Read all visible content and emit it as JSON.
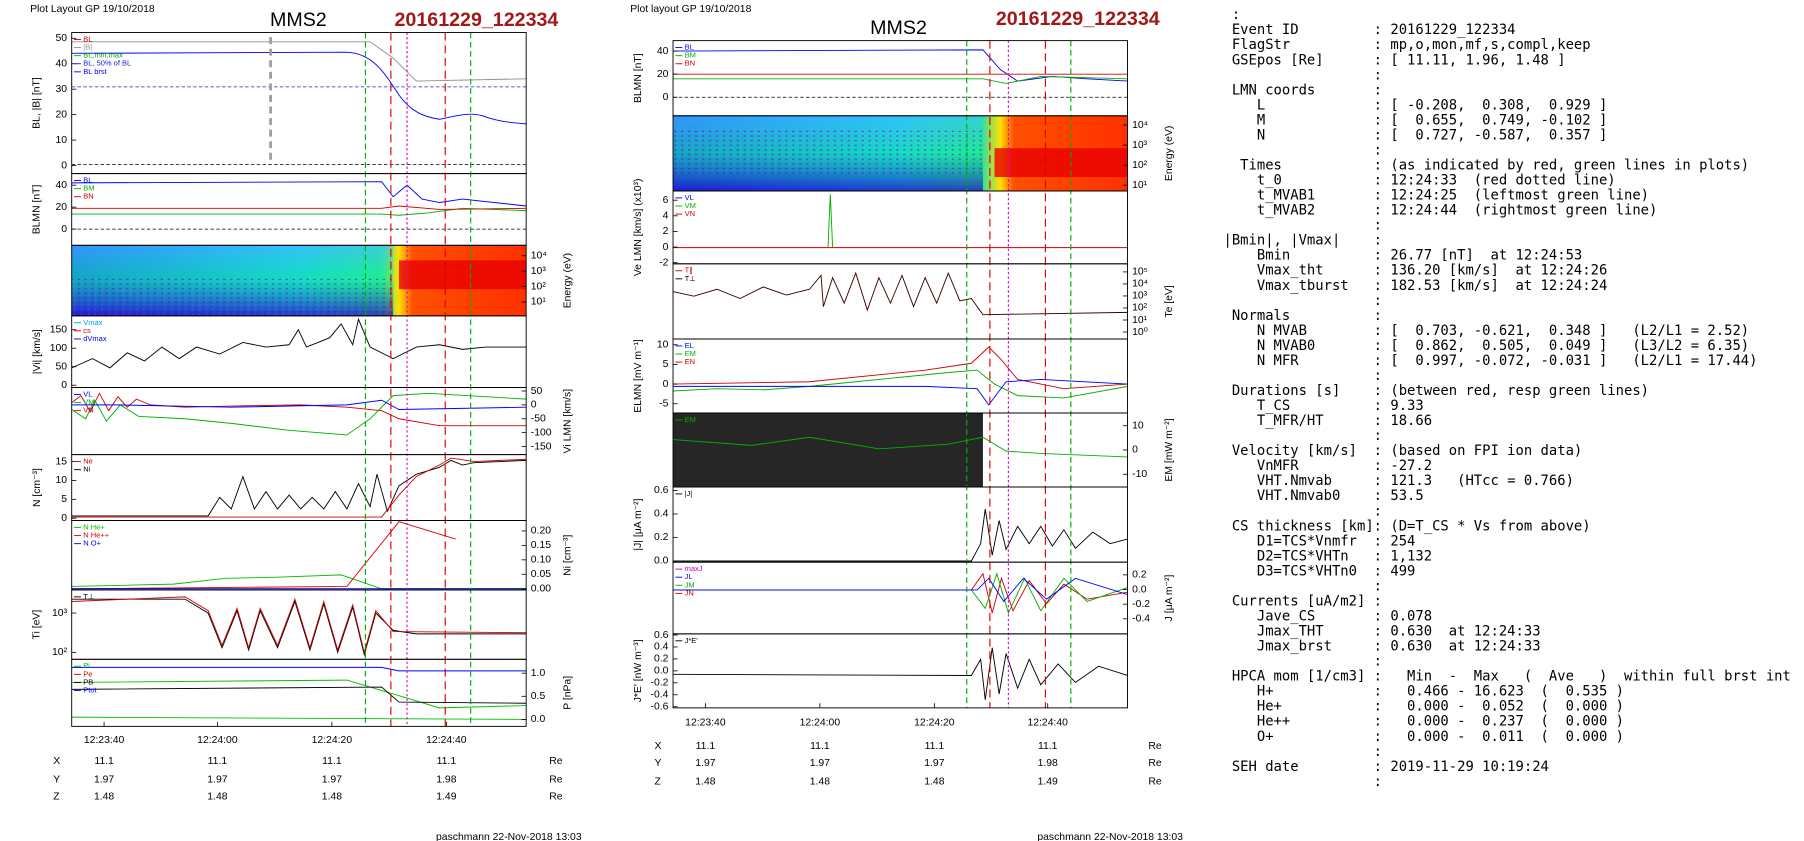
{
  "plots": [
    {
      "header": "Plot Layout GP 19/10/2018",
      "spacecraft": "MMS2",
      "event": "20161229_122334",
      "panels": [
        {
          "label": "BL, |B| [nT]",
          "ticks": [
            "50",
            "40",
            "30",
            "20",
            "10",
            "0"
          ],
          "legend": [
            {
              "text": "BL",
              "color": "#d00000"
            },
            {
              "text": "|B|",
              "color": "#909090"
            },
            {
              "text": "BL,min,max",
              "color": "#00b000"
            },
            {
              "text": "BL, 50% of BL",
              "color": "#2020d0"
            },
            {
              "text": "BL brst",
              "color": "#0000ff"
            }
          ]
        },
        {
          "label": "BLMN [nT]",
          "ticks": [
            "40",
            "20",
            "0"
          ],
          "legend": [
            {
              "text": "BL",
              "color": "#0000ff"
            },
            {
              "text": "BM",
              "color": "#00b000"
            },
            {
              "text": "BN",
              "color": "#d00000"
            }
          ]
        },
        {
          "label": "Energy (eV)",
          "ticks": [
            "10⁴",
            "10³",
            "10²",
            "10¹"
          ],
          "legend": []
        },
        {
          "label": "|Vi| [km/s]",
          "ticks": [
            "150",
            "100",
            "50",
            "0"
          ],
          "legend": [
            {
              "text": "Vmax",
              "color": "#00a0ff"
            },
            {
              "text": "cs",
              "color": "#d00000"
            },
            {
              "text": "dVmax",
              "color": "#0000ff"
            }
          ]
        },
        {
          "label": "Vi LMN [km/s]",
          "ticks": [
            "50",
            "0",
            "-50",
            "-100",
            "-150"
          ],
          "legend": [
            {
              "text": "VL",
              "color": "#0000ff"
            },
            {
              "text": "VM",
              "color": "#00b000"
            },
            {
              "text": "VN",
              "color": "#d00000"
            }
          ]
        },
        {
          "label": "N [cm⁻³]",
          "ticks": [
            "15",
            "10",
            "5",
            "0"
          ],
          "legend": [
            {
              "text": "Ne",
              "color": "#d00000"
            },
            {
              "text": "Ni",
              "color": "#000000"
            }
          ]
        },
        {
          "label": "Ni [cm⁻³]",
          "ticks": [
            "0.20",
            "0.15",
            "0.10",
            "0.05",
            "0.00"
          ],
          "legend": [
            {
              "text": "N He+",
              "color": "#00c000"
            },
            {
              "text": "N He++",
              "color": "#e00000"
            },
            {
              "text": "N O+",
              "color": "#0000e0"
            }
          ]
        },
        {
          "label": "Ti [eV]",
          "ticks": [
            "10³",
            "10²"
          ],
          "legend": [
            {
              "text": "T⊥",
              "color": "#000000"
            }
          ]
        },
        {
          "label": "P [nPa]",
          "ticks": [
            "1.0",
            "0.5",
            "0.0"
          ],
          "legend": [
            {
              "text": "Pi",
              "color": "#00c000"
            },
            {
              "text": "Pe",
              "color": "#d00000"
            },
            {
              "text": "PB",
              "color": "#000000"
            },
            {
              "text": "Ptot",
              "color": "#0000ff"
            }
          ]
        }
      ],
      "time_ticks": [
        "12:23:40",
        "12:24:00",
        "12:24:20",
        "12:24:40"
      ],
      "coords": [
        [
          "X",
          "11.1",
          "11.1",
          "11.1",
          "11.1",
          "Re"
        ],
        [
          "Y",
          "1.97",
          "1.97",
          "1.97",
          "1.98",
          "Re"
        ],
        [
          "Z",
          "1.48",
          "1.48",
          "1.48",
          "1.49",
          "Re"
        ]
      ],
      "footer": "paschmann 22-Nov-2018 13:03"
    },
    {
      "header": "Plot layout GP 19/10/2018",
      "spacecraft": "MMS2",
      "event": "20161229_122334",
      "panels": [
        {
          "label": "BLMN [nT]",
          "ticks": [
            "40",
            "20",
            "0"
          ],
          "legend": [
            {
              "text": "BL",
              "color": "#0000ff"
            },
            {
              "text": "BM",
              "color": "#00b000"
            },
            {
              "text": "BN",
              "color": "#d00000"
            }
          ]
        },
        {
          "label": "Energy (eV)",
          "ticks": [
            "10⁴",
            "10³",
            "10²",
            "10¹"
          ],
          "legend": []
        },
        {
          "label": "Ve LMN [km/s] (x10³)",
          "ticks": [
            "6",
            "4",
            "2",
            "0",
            "-2"
          ],
          "legend": [
            {
              "text": "VL",
              "color": "#0000ff"
            },
            {
              "text": "VM",
              "color": "#00b000"
            },
            {
              "text": "VN",
              "color": "#d00000"
            }
          ]
        },
        {
          "label": "Te [eV]",
          "ticks": [
            "10⁵",
            "10⁴",
            "10³",
            "10²",
            "10¹",
            "10⁰"
          ],
          "legend": [
            {
              "text": "T∥",
              "color": "#d00000"
            },
            {
              "text": "T⊥",
              "color": "#000000"
            }
          ]
        },
        {
          "label": "ELMN [mV m⁻¹]",
          "ticks": [
            "10",
            "5",
            "0",
            "-5"
          ],
          "legend": [
            {
              "text": "EL",
              "color": "#0000ff"
            },
            {
              "text": "EM",
              "color": "#00b000"
            },
            {
              "text": "EN",
              "color": "#d00000"
            }
          ]
        },
        {
          "label": "EM [mW m⁻²]",
          "ticks": [
            "10",
            "0",
            "-10"
          ],
          "legend": [
            {
              "text": "EM",
              "color": "#00b000"
            }
          ]
        },
        {
          "label": "|J| [μA m⁻²]",
          "ticks": [
            "0.6",
            "0.4",
            "0.2",
            "0.0"
          ],
          "legend": [
            {
              "text": "|J|",
              "color": "#000000"
            }
          ]
        },
        {
          "label": "J [μA m⁻²]",
          "ticks": [
            "0.2",
            "0.0",
            "-0.2",
            "-0.4"
          ],
          "legend": [
            {
              "text": "maxJ",
              "color": "#c000c0"
            },
            {
              "text": "JL",
              "color": "#0000ff"
            },
            {
              "text": "JM",
              "color": "#00b000"
            },
            {
              "text": "JN",
              "color": "#d00000"
            }
          ]
        },
        {
          "label": "J*E' [nW m⁻³]",
          "ticks": [
            "0.6",
            "0.4",
            "0.2",
            "0.0",
            "-0.2",
            "-0.4",
            "-0.6"
          ],
          "legend": [
            {
              "text": "J*E'",
              "color": "#000000"
            }
          ]
        }
      ],
      "time_ticks": [
        "12:23:40",
        "12:24:00",
        "12:24:20",
        "12:24:40"
      ],
      "coords": [
        [
          "X",
          "11.1",
          "11.1",
          "11.1",
          "11.1",
          "Re"
        ],
        [
          "Y",
          "1.97",
          "1.97",
          "1.97",
          "1.98",
          "Re"
        ],
        [
          "Z",
          "1.48",
          "1.48",
          "1.48",
          "1.49",
          "Re"
        ]
      ],
      "footer": "paschmann 22-Nov-2018 13:03"
    }
  ],
  "info": {
    "lines": [
      " :",
      " Event ID         : 20161229_122334",
      " FlagStr          : mp,o,mon,mf,s,compl,keep",
      " GSEpos [Re]      : [ 11.11, 1.96, 1.48 ]",
      "                  :",
      " LMN coords       :",
      "    L             : [ -0.208,  0.308,  0.929 ]",
      "    M             : [  0.655,  0.749, -0.102 ]",
      "    N             : [  0.727, -0.587,  0.357 ]",
      "                  :",
      "  Times           : (as indicated by red, green lines in plots)",
      "    t_0           : 12:24:33  (red dotted line)",
      "    t_MVAB1       : 12:24:25  (leftmost green line)",
      "    t_MVAB2       : 12:24:44  (rightmost green line)",
      "                  :",
      "|Bmin|, |Vmax|    :",
      "    Bmin          : 26.77 [nT]  at 12:24:53",
      "    Vmax_tht      : 136.20 [km/s]  at 12:24:26",
      "    Vmax_tburst   : 182.53 [km/s]  at 12:24:24",
      "                  :",
      " Normals          :",
      "    N MVAB        : [  0.703, -0.621,  0.348 ]   (L2/L1 = 2.52)",
      "    N MVAB0       : [  0.862,  0.505,  0.049 ]   (L3/L2 = 6.35)",
      "    N MFR         : [  0.997, -0.072, -0.031 ]   (L2/L1 = 17.44)",
      "                  :",
      " Durations [s]    : (between red, resp green lines)",
      "    T_CS          : 9.33",
      "    T_MFR/HT      : 18.66",
      "                  :",
      " Velocity [km/s]  : (based on FPI ion data)",
      "    VnMFR         : -27.2",
      "    VHT.Nmvab     : 121.3   (HTcc = 0.766)",
      "    VHT.Nmvab0    : 53.5",
      "                  :",
      " CS thickness [km]: (D=T_CS * Vs from above)",
      "    D1=TCS*Vnmfr  : 254",
      "    D2=TCS*VHTn   : 1,132",
      "    D3=TCS*VHTn0  : 499",
      "                  :",
      " Currents [uA/m2] :",
      "    Jave_CS       : 0.078",
      "    Jmax_THT      : 0.630  at 12:24:33",
      "    Jmax_brst     : 0.630  at 12:24:33",
      "                  :",
      " HPCA mom [1/cm3] :   Min  -  Max   (  Ave   )  within full brst int",
      "    H+            :   0.466 - 16.623  (  0.535 )",
      "    He+           :   0.000 -  0.052  (  0.000 )",
      "    He++          :   0.000 -  0.237  (  0.000 )",
      "    O+            :   0.000 -  0.011  (  0.000 )",
      "                  :",
      " SEH date         : 2019-11-29 10:19:24",
      "                  :"
    ]
  }
}
